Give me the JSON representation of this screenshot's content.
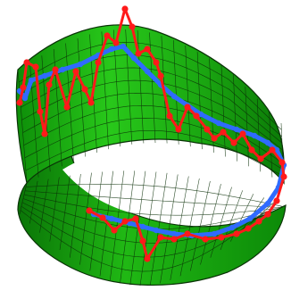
{
  "figure": {
    "kind": "3d-mobius-strip-with-curves",
    "colors": {
      "surface": "#18b20e",
      "surface_dark": "#0a6a06",
      "mesh": "#0a2e07",
      "noisy_curve": "#ff1a1a",
      "smooth_curve": "#2f6bff"
    }
  }
}
